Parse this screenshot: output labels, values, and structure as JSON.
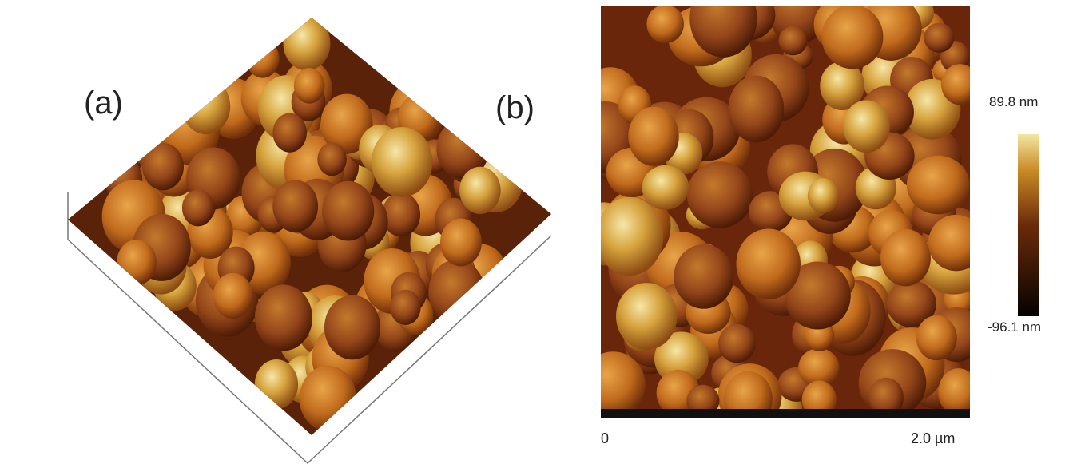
{
  "panel_a": {
    "label": "(a)"
  },
  "panel_b": {
    "label": "(b)",
    "scale_start": "0",
    "scale_end": "2.0 µm",
    "colorbar": {
      "max_label": "89.8 nm",
      "min_label": "-96.1 nm"
    }
  }
}
